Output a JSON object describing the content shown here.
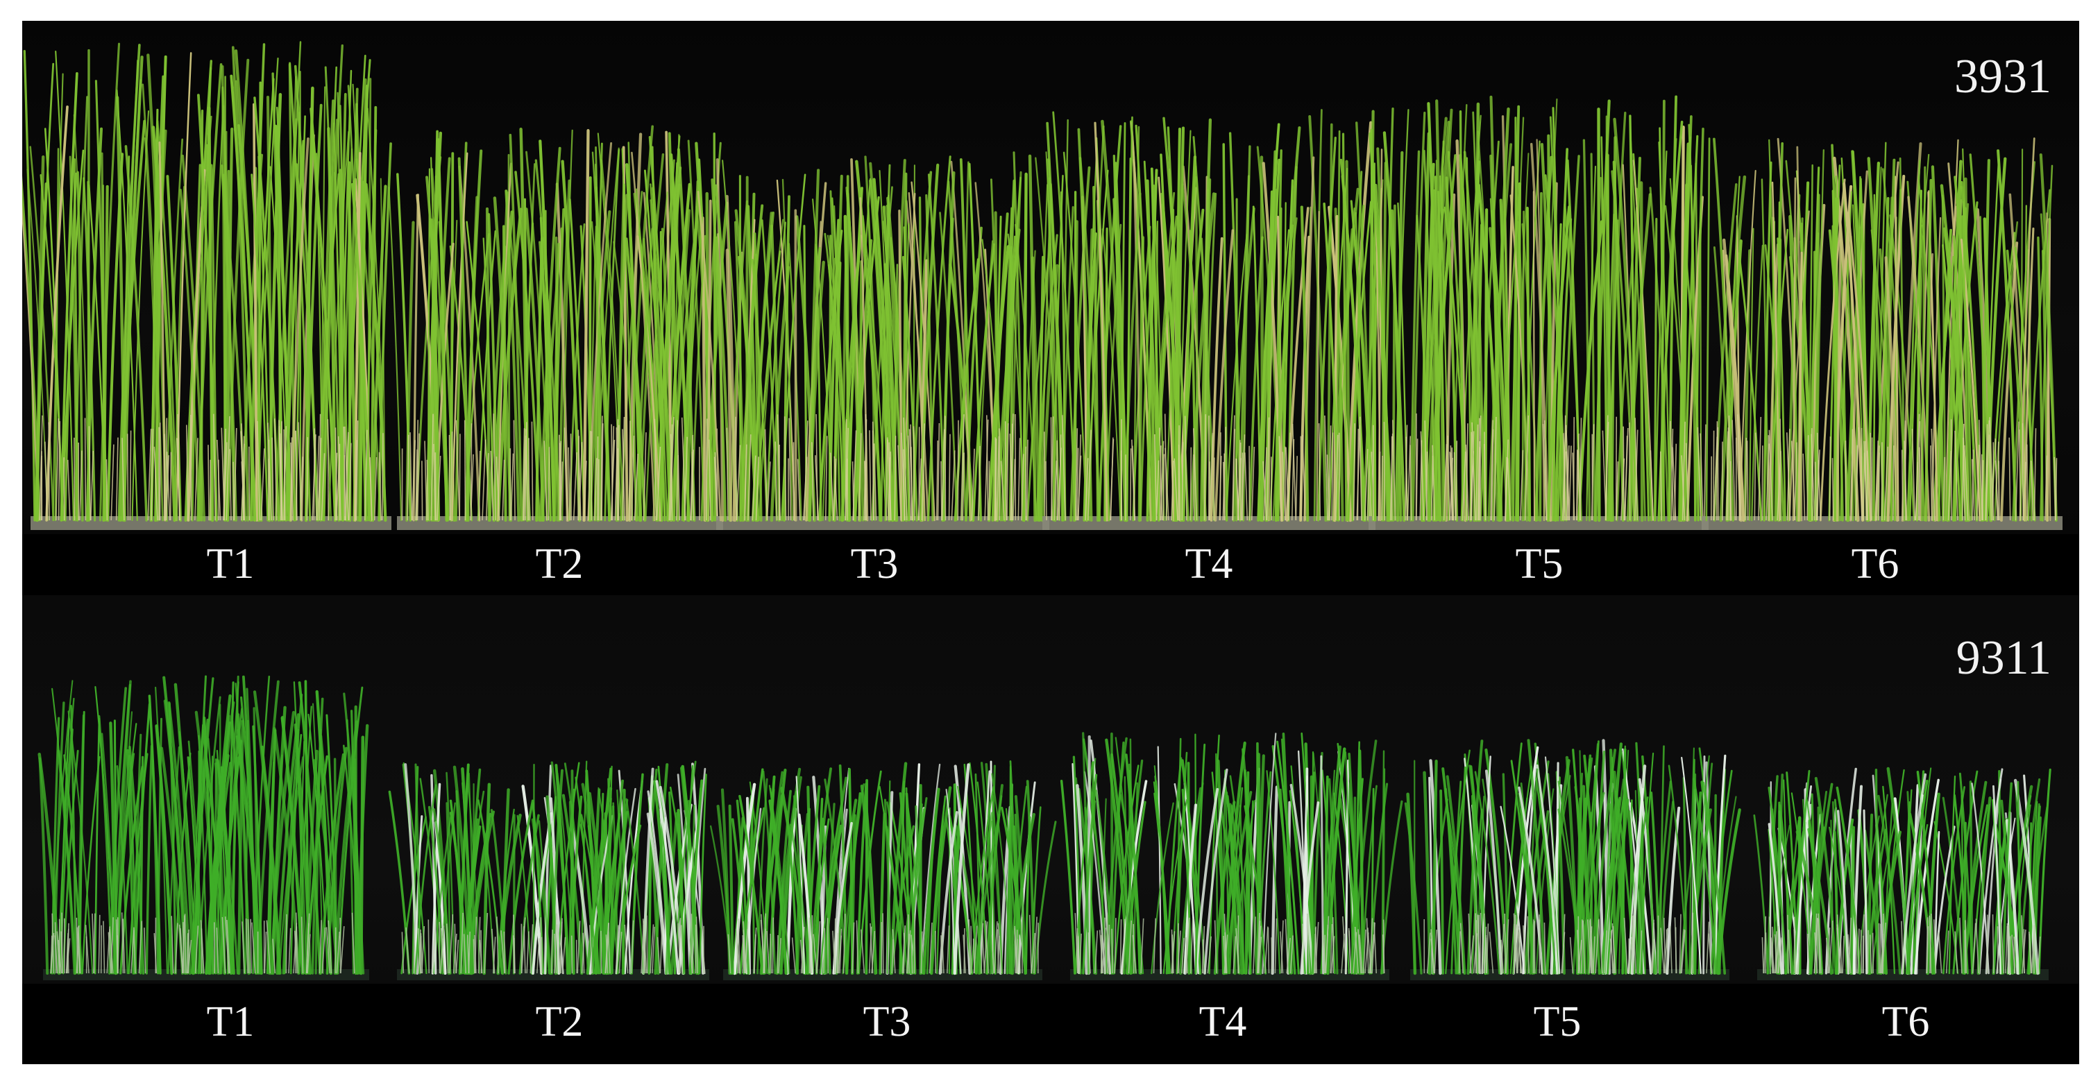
{
  "panels": [
    {
      "variety": "3931",
      "treatments": [
        "T1",
        "T2",
        "T3",
        "T4",
        "T5",
        "T6"
      ],
      "leaf_color": "#7fc232",
      "leaf_tip_color": "#c9c07a",
      "base_color": "#d8d19a",
      "tray_color": "#8a8a7a"
    },
    {
      "variety": "9311",
      "treatments": [
        "T1",
        "T2",
        "T3",
        "T4",
        "T5",
        "T6"
      ],
      "leaf_color": "#3fae28",
      "leaf_tip_color": "#e6efe6",
      "base_color": "#b8c8a8",
      "tray_color": "#1f2a22"
    }
  ]
}
